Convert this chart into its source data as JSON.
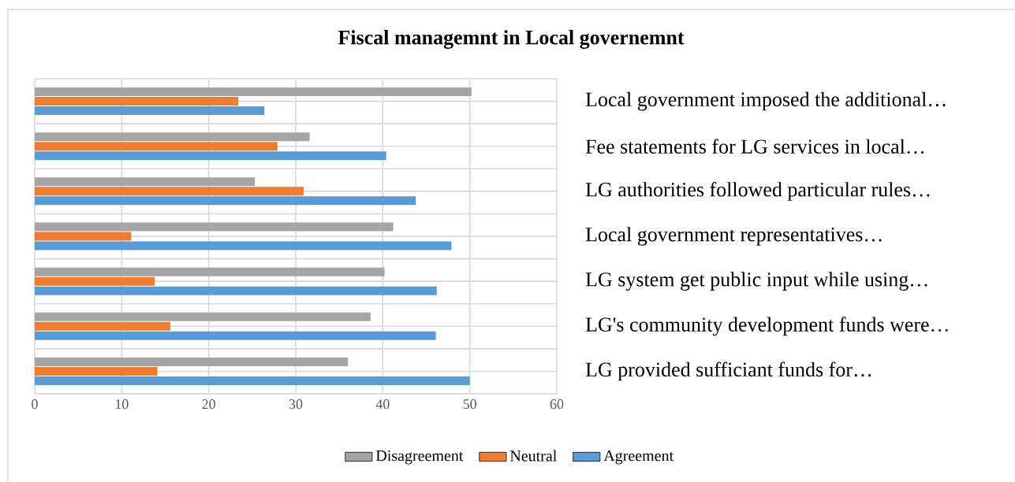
{
  "chart_data": {
    "type": "bar",
    "orientation": "horizontal",
    "title": "Fiscal managemnt in Local governemnt",
    "categories": [
      "Local government imposed the additional…",
      "Fee statements for LG services in local…",
      "LG authorities followed particular rules…",
      "Local government representatives…",
      "LG system get public input while using…",
      "LG's community development funds were…",
      "LG provided sufficiant funds for…"
    ],
    "series": [
      {
        "name": "Disagreement",
        "color": "#a5a5a5",
        "values": [
          50.2,
          31.6,
          25.3,
          41.2,
          40.2,
          38.6,
          36.0
        ]
      },
      {
        "name": "Neutral",
        "color": "#ed7d31",
        "values": [
          23.4,
          27.9,
          30.9,
          11.1,
          13.8,
          15.6,
          14.1
        ]
      },
      {
        "name": "Agreement",
        "color": "#5b9bd5",
        "values": [
          26.4,
          40.4,
          43.8,
          47.9,
          46.2,
          46.1,
          50.0
        ]
      }
    ],
    "xlim": [
      0,
      60
    ],
    "xticks": [
      0,
      10,
      20,
      30,
      40,
      50,
      60
    ],
    "grid": true,
    "legend": "bottom"
  }
}
